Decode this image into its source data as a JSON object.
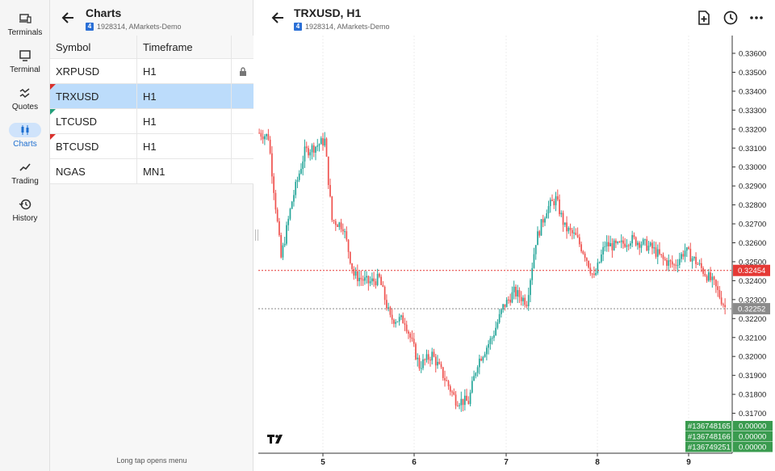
{
  "nav": {
    "items": [
      {
        "label": "Terminals",
        "icon": "devices-icon"
      },
      {
        "label": "Terminal",
        "icon": "monitor-icon"
      },
      {
        "label": "Quotes",
        "icon": "quotes-icon"
      },
      {
        "label": "Charts",
        "icon": "candles-icon",
        "active": true
      },
      {
        "label": "Trading",
        "icon": "trend-icon"
      },
      {
        "label": "History",
        "icon": "history-icon"
      }
    ]
  },
  "panel": {
    "title": "Charts",
    "account_badge": "4",
    "account": "1928314, AMarkets-Demo",
    "columns": {
      "symbol": "Symbol",
      "timeframe": "Timeframe"
    },
    "rows": [
      {
        "symbol": "XRPUSD",
        "timeframe": "H1",
        "locked": true
      },
      {
        "symbol": "TRXUSD",
        "timeframe": "H1",
        "selected": true,
        "marker": "red"
      },
      {
        "symbol": "LTCUSD",
        "timeframe": "H1",
        "marker": "green"
      },
      {
        "symbol": "BTCUSD",
        "timeframe": "H1",
        "marker": "red"
      },
      {
        "symbol": "NGAS",
        "timeframe": "MN1"
      }
    ],
    "hint": "Long tap opens menu"
  },
  "chart": {
    "title": "TRXUSD, H1",
    "account_badge": "4",
    "account": "1928314, AMarkets-Demo",
    "price_labels": [
      "0.33600",
      "0.33500",
      "0.33400",
      "0.33300",
      "0.33200",
      "0.33100",
      "0.33000",
      "0.32900",
      "0.32800",
      "0.32700",
      "0.32600",
      "0.32500",
      "0.32400",
      "0.32300",
      "0.32200",
      "0.32100",
      "0.32000",
      "0.31900",
      "0.31800",
      "0.31700"
    ],
    "ask_price": "0.32454",
    "bid_price": "0.32252",
    "time_labels": [
      "5",
      "6",
      "7",
      "8",
      "9"
    ],
    "orders": [
      {
        "id": "#136748165",
        "value": "0.00000"
      },
      {
        "id": "#136748166",
        "value": "0.00000"
      },
      {
        "id": "#136749251",
        "value": "0.00000"
      }
    ],
    "colors": {
      "bull": "#26a69a",
      "bear": "#ef5350",
      "ask": "#e53935",
      "bid": "#8a8a8a",
      "order": "#3a9b4f"
    }
  }
}
